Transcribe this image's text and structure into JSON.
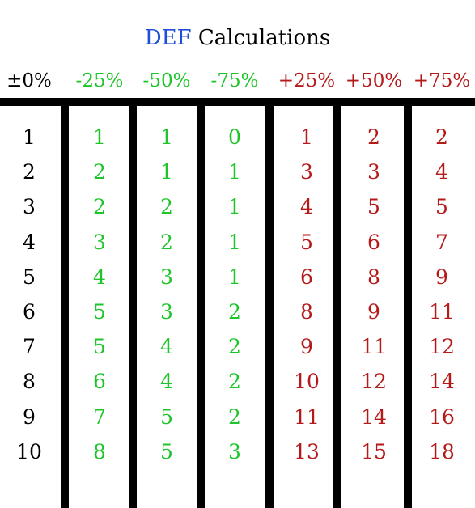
{
  "title": {
    "accent": "DEF",
    "rest": "Calculations"
  },
  "colors": {
    "accent": "#1f4fd6",
    "neutral": "#000000",
    "minus": "#1ec52a",
    "plus": "#b51a1a",
    "rules": "#000000"
  },
  "columns": [
    {
      "label": "±0%",
      "kind": "neutral",
      "values": [
        "1",
        "2",
        "3",
        "4",
        "5",
        "6",
        "7",
        "8",
        "9",
        "10"
      ]
    },
    {
      "label": "-25%",
      "kind": "minus",
      "values": [
        "1",
        "2",
        "2",
        "3",
        "4",
        "5",
        "5",
        "6",
        "7",
        "8"
      ]
    },
    {
      "label": "-50%",
      "kind": "minus",
      "values": [
        "1",
        "1",
        "2",
        "2",
        "3",
        "3",
        "4",
        "4",
        "5",
        "5"
      ]
    },
    {
      "label": "-75%",
      "kind": "minus",
      "values": [
        "0",
        "1",
        "1",
        "1",
        "1",
        "2",
        "2",
        "2",
        "2",
        "3"
      ]
    },
    {
      "label": "+25%",
      "kind": "plus",
      "values": [
        "1",
        "3",
        "4",
        "5",
        "6",
        "8",
        "9",
        "10",
        "11",
        "13"
      ]
    },
    {
      "label": "+50%",
      "kind": "plus",
      "values": [
        "2",
        "3",
        "5",
        "6",
        "8",
        "9",
        "11",
        "12",
        "14",
        "15"
      ]
    },
    {
      "label": "+75%",
      "kind": "plus",
      "values": [
        "2",
        "4",
        "5",
        "7",
        "9",
        "11",
        "12",
        "14",
        "16",
        "18"
      ]
    }
  ]
}
